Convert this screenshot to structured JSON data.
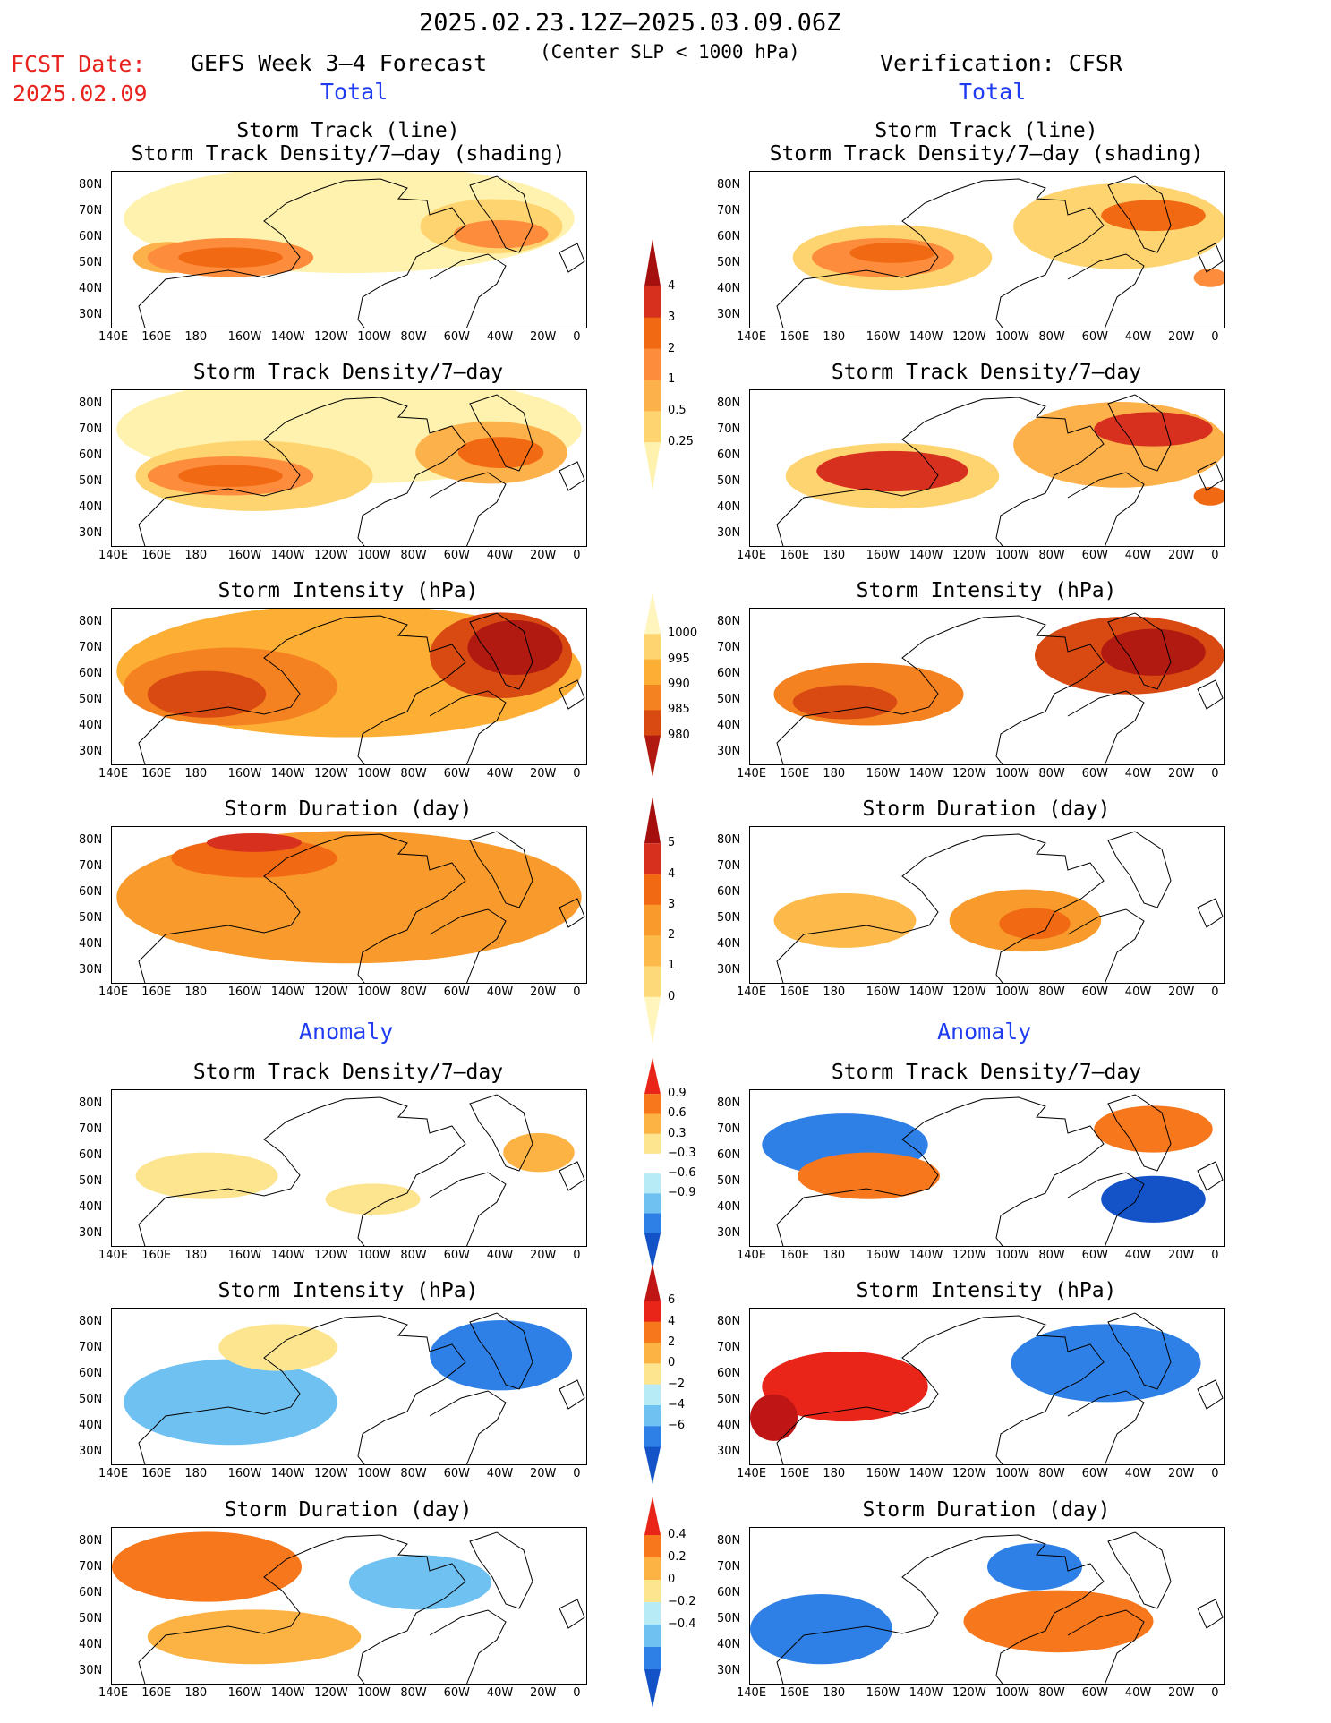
{
  "header": {
    "date_range": "2025.02.23.12Z–2025.03.09.06Z",
    "criterion": "(Center SLP < 1000 hPa)",
    "fcst_label": "FCST Date:",
    "fcst_date": "2025.02.09",
    "left_title": "GEFS Week 3–4 Forecast",
    "right_title": "Verification: CFSR",
    "section_total": "Total",
    "section_anomaly": "Anomaly"
  },
  "panel_titles": {
    "track_line": "Storm Track (line)",
    "track_density_shading": "Storm Track Density/7–day (shading)",
    "track_density": "Storm Track Density/7–day",
    "intensity": "Storm Intensity (hPa)",
    "duration": "Storm Duration (day)"
  },
  "axes": {
    "lat_labels": [
      "80N",
      "70N",
      "60N",
      "50N",
      "40N",
      "30N"
    ],
    "lon_labels": [
      "140E",
      "160E",
      "180",
      "160W",
      "140W",
      "120W",
      "100W",
      "80W",
      "60W",
      "40W",
      "20W",
      "0"
    ]
  },
  "colorbars": {
    "density": {
      "labels": [
        "4",
        "3",
        "2",
        "1",
        "0.5",
        "0.25"
      ],
      "colors": [
        "#a50f0d",
        "#d7301f",
        "#f16913",
        "#fd8d3c",
        "#fdb14a",
        "#fed470",
        "#fff2ae"
      ]
    },
    "intensity": {
      "labels": [
        "1000",
        "995",
        "990",
        "985",
        "980"
      ],
      "colors": [
        "#fff5bd",
        "#fed470",
        "#fdae35",
        "#f58220",
        "#d84a12",
        "#b01a10"
      ]
    },
    "duration": {
      "labels": [
        "5",
        "4",
        "3",
        "2",
        "1",
        "0"
      ],
      "colors": [
        "#a50f0d",
        "#d7301f",
        "#f16913",
        "#f99a2c",
        "#fdb94a",
        "#fed979",
        "#fff5bd"
      ]
    },
    "anom_density": {
      "labels": [
        "0.9",
        "0.6",
        "0.3",
        "−0.3",
        "−0.6",
        "−0.9"
      ],
      "colors": [
        "#e9251a",
        "#f7771c",
        "#fdb343",
        "#fde590",
        "#ffffff",
        "#b7ecf7",
        "#6fc1f2",
        "#2f80e6",
        "#1452c8"
      ]
    },
    "anom_intensity": {
      "labels": [
        "6",
        "4",
        "2",
        "0",
        "−2",
        "−4",
        "−6"
      ],
      "colors": [
        "#c01515",
        "#e9251a",
        "#f7771c",
        "#fdb343",
        "#fde590",
        "#b7ecf7",
        "#6fc1f2",
        "#2f80e6",
        "#1452c8"
      ]
    },
    "anom_duration": {
      "labels": [
        "0.4",
        "0.2",
        "0",
        "−0.2",
        "−0.4"
      ],
      "colors": [
        "#e9251a",
        "#f7771c",
        "#fdb343",
        "#fde590",
        "#b7ecf7",
        "#6fc1f2",
        "#2f80e6",
        "#1452c8"
      ]
    }
  }
}
